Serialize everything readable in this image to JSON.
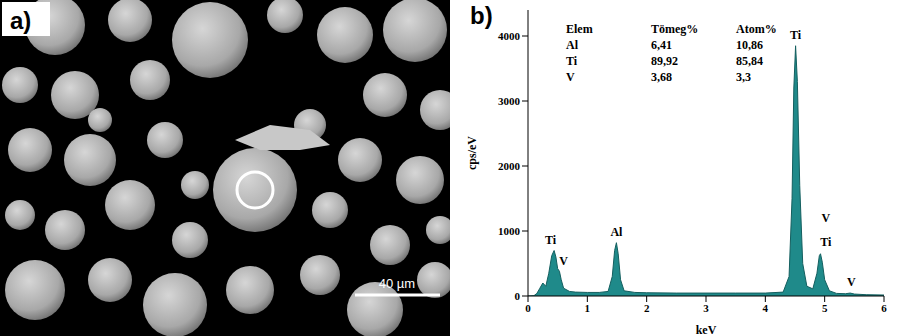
{
  "panel_a": {
    "label": "a)",
    "scale_bar": "40 µm"
  },
  "chart_data": {
    "type": "area",
    "panel_label": "b)",
    "x_label": "keV",
    "y_label": "cps/eV",
    "color": "#1f8a8a",
    "x": [
      0,
      0.1,
      0.15,
      0.2,
      0.25,
      0.3,
      0.35,
      0.4,
      0.44,
      0.47,
      0.5,
      0.53,
      0.56,
      0.6,
      0.7,
      0.8,
      1.0,
      1.2,
      1.35,
      1.42,
      1.46,
      1.49,
      1.52,
      1.56,
      1.62,
      1.8,
      2.0,
      2.5,
      3.0,
      3.5,
      4.0,
      4.3,
      4.4,
      4.45,
      4.48,
      4.51,
      4.54,
      4.58,
      4.63,
      4.7,
      4.8,
      4.87,
      4.91,
      4.93,
      4.96,
      5.0,
      5.08,
      5.2,
      5.35,
      5.43,
      5.5,
      5.7,
      6.0
    ],
    "values": [
      0,
      5,
      40,
      120,
      200,
      150,
      350,
      620,
      700,
      600,
      420,
      380,
      250,
      120,
      70,
      60,
      55,
      55,
      70,
      300,
      700,
      820,
      650,
      250,
      80,
      55,
      50,
      45,
      45,
      45,
      45,
      60,
      300,
      1500,
      3200,
      3850,
      3300,
      1700,
      500,
      150,
      110,
      350,
      620,
      650,
      520,
      250,
      80,
      40,
      35,
      45,
      30,
      20,
      15
    ],
    "xlim": [
      0,
      6
    ],
    "xticks": [
      0,
      1,
      2,
      3,
      4,
      5,
      6
    ],
    "ylim": [
      0,
      4400
    ],
    "yticks": [
      0,
      1000,
      2000,
      3000,
      4000
    ],
    "annotations": [
      {
        "x": 0.38,
        "y": 720,
        "label": "Ti"
      },
      {
        "x": 0.6,
        "y": 400,
        "label": "V"
      },
      {
        "x": 1.49,
        "y": 850,
        "label": "Al"
      },
      {
        "x": 4.51,
        "y": 3880,
        "label": "Ti"
      },
      {
        "x": 5.02,
        "y": 1060,
        "label": "V"
      },
      {
        "x": 5.02,
        "y": 700,
        "label": "Ti"
      },
      {
        "x": 5.45,
        "y": 70,
        "label": "V"
      }
    ],
    "table": {
      "header": [
        "Elem",
        "Tömeg%",
        "Atom%"
      ],
      "rows": [
        [
          "Al",
          "6,41",
          "10,86"
        ],
        [
          "Ti",
          "89,92",
          "85,84"
        ],
        [
          "V",
          "3,68",
          "3,3"
        ]
      ]
    }
  }
}
